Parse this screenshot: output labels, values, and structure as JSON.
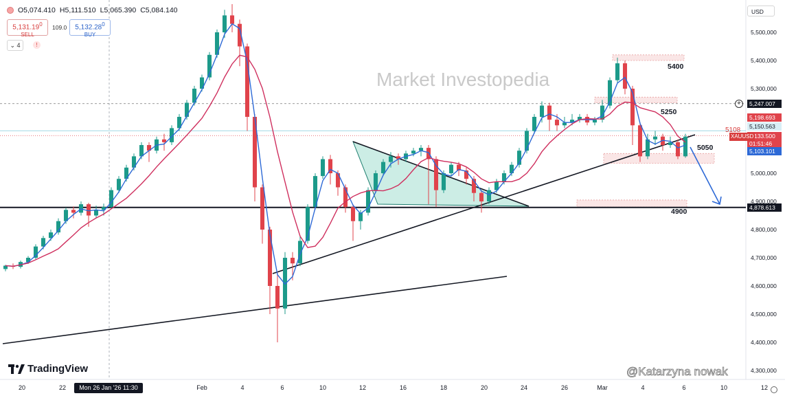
{
  "header": {
    "ohlc": [
      {
        "label": "O",
        "value": "5,074.410"
      },
      {
        "label": "H",
        "value": "5,111.510"
      },
      {
        "label": "L",
        "value": "5,065.390"
      },
      {
        "label": "C",
        "value": "5,084.140"
      }
    ],
    "sell_price": "5,131.19",
    "sell_sup": "0",
    "sell_label": "SELL",
    "spread": "109.0",
    "buy_price": "5,132.28",
    "buy_sup": "0",
    "buy_label": "BUY",
    "indicators_count": "4",
    "warning": "!",
    "currency": "USD"
  },
  "watermark": "Market Investopedia",
  "branding": {
    "logo_text": "TradingView",
    "credit": "@Katarzyna nowak"
  },
  "cursor_date": "Mon 26 Jan '26  11:30",
  "chart_data": {
    "type": "candlestick",
    "symbol": "XAUUSD",
    "ylim": [
      4330,
      5620
    ],
    "y_ticks": [
      4400,
      4500,
      4600,
      4700,
      4800,
      4900,
      5000,
      5100,
      5200,
      5300,
      5400,
      5500
    ],
    "y_tick_labels": [
      "4,400,000",
      "4,500,000",
      "4,600,000",
      "4,700,000",
      "4,800,000",
      "4,900,000",
      "5,000,000",
      "5,100,000",
      "5,200,000",
      "5,300,000",
      "5,400,000",
      "5,500,000"
    ],
    "y_top_label": "4,300,000",
    "x_ticks": [
      "20",
      "22",
      "Feb",
      "4",
      "6",
      "10",
      "12",
      "16",
      "18",
      "20",
      "24",
      "26",
      "Mar",
      "4",
      "6",
      "10",
      "12"
    ],
    "price_labels": [
      {
        "value": 5247.007,
        "text": "5,247.007",
        "style": "dark"
      },
      {
        "value": 5198.693,
        "text": "5,198.693",
        "style": "red"
      },
      {
        "value": 5150.563,
        "text": "5,150.563",
        "style": "light"
      },
      {
        "value": 5133.5,
        "text": "5,133.500",
        "style": "red"
      },
      {
        "value": 5125,
        "text": "01:51:46",
        "style": "red"
      },
      {
        "value": 5103.101,
        "text": "5,103.101",
        "style": "blue"
      },
      {
        "value": 4878.613,
        "text": "4,878.613",
        "style": "dark"
      }
    ],
    "level_labels": [
      {
        "value": 5400,
        "text": "5400"
      },
      {
        "value": 5250,
        "text": "5250"
      },
      {
        "value": 5050,
        "text": "5050"
      },
      {
        "value": 4900,
        "text": "4900"
      }
    ],
    "level_5108": "5108",
    "colors": {
      "up": "#1c9a8a",
      "down": "#e0434b",
      "ma_fast": "#2d69d6",
      "ma_slow": "#cf2f5e",
      "triangle": "#8fd6c6",
      "zone": "#f4c7c7"
    },
    "candles": [
      [
        4660,
        4672,
        4652,
        4675
      ],
      [
        4672,
        4668,
        4660,
        4680
      ],
      [
        4668,
        4685,
        4662,
        4690
      ],
      [
        4685,
        4700,
        4678,
        4706
      ],
      [
        4700,
        4740,
        4695,
        4748
      ],
      [
        4740,
        4770,
        4730,
        4778
      ],
      [
        4770,
        4790,
        4760,
        4800
      ],
      [
        4790,
        4830,
        4782,
        4840
      ],
      [
        4830,
        4870,
        4820,
        4878
      ],
      [
        4870,
        4860,
        4840,
        4882
      ],
      [
        4860,
        4890,
        4850,
        4900
      ],
      [
        4890,
        4850,
        4810,
        4895
      ],
      [
        4850,
        4870,
        4840,
        4885
      ],
      [
        4870,
        4880,
        4850,
        4892
      ],
      [
        4880,
        4940,
        4875,
        4950
      ],
      [
        4940,
        4980,
        4930,
        4990
      ],
      [
        4980,
        5020,
        4970,
        5030
      ],
      [
        5020,
        5060,
        5010,
        5070
      ],
      [
        5060,
        5100,
        5050,
        5110
      ],
      [
        5100,
        5080,
        5040,
        5110
      ],
      [
        5080,
        5120,
        5070,
        5130
      ],
      [
        5120,
        5110,
        5080,
        5140
      ],
      [
        5110,
        5160,
        5100,
        5170
      ],
      [
        5160,
        5200,
        5150,
        5210
      ],
      [
        5200,
        5250,
        5190,
        5260
      ],
      [
        5250,
        5300,
        5240,
        5310
      ],
      [
        5300,
        5340,
        5290,
        5350
      ],
      [
        5340,
        5420,
        5330,
        5430
      ],
      [
        5420,
        5500,
        5410,
        5510
      ],
      [
        5500,
        5560,
        5480,
        5580
      ],
      [
        5560,
        5530,
        5500,
        5600
      ],
      [
        5530,
        5450,
        5380,
        5545
      ],
      [
        5450,
        5200,
        5150,
        5460
      ],
      [
        5200,
        4950,
        4900,
        5210
      ],
      [
        4950,
        4800,
        4750,
        4960
      ],
      [
        4800,
        4600,
        4500,
        4810
      ],
      [
        4600,
        4520,
        4400,
        4650
      ],
      [
        4520,
        4700,
        4500,
        4720
      ],
      [
        4700,
        4680,
        4620,
        4720
      ],
      [
        4680,
        4760,
        4670,
        4780
      ],
      [
        4760,
        4880,
        4750,
        4890
      ],
      [
        4880,
        4990,
        4870,
        5000
      ],
      [
        4990,
        5050,
        4980,
        5060
      ],
      [
        5050,
        5000,
        4960,
        5065
      ],
      [
        5000,
        4950,
        4920,
        5010
      ],
      [
        4950,
        4880,
        4860,
        4960
      ],
      [
        4880,
        4830,
        4760,
        4890
      ],
      [
        4830,
        4860,
        4800,
        4870
      ],
      [
        4860,
        4940,
        4850,
        4950
      ],
      [
        4940,
        5000,
        4930,
        5010
      ],
      [
        5000,
        5040,
        4990,
        5050
      ],
      [
        5040,
        5060,
        5020,
        5075
      ],
      [
        5060,
        5050,
        5030,
        5070
      ],
      [
        5050,
        5070,
        5040,
        5080
      ],
      [
        5070,
        5080,
        5060,
        5090
      ],
      [
        5080,
        5090,
        5060,
        5100
      ],
      [
        5090,
        5050,
        4890,
        5100
      ],
      [
        5050,
        4940,
        4880,
        5060
      ],
      [
        4940,
        5000,
        4930,
        5010
      ],
      [
        5000,
        5030,
        4990,
        5040
      ],
      [
        5030,
        5010,
        4990,
        5040
      ],
      [
        5010,
        4980,
        4960,
        5020
      ],
      [
        4980,
        4930,
        4900,
        4990
      ],
      [
        4930,
        4900,
        4860,
        4940
      ],
      [
        4900,
        4940,
        4890,
        4950
      ],
      [
        4940,
        4970,
        4930,
        4980
      ],
      [
        4970,
        5000,
        4960,
        5010
      ],
      [
        5000,
        5030,
        4990,
        5040
      ],
      [
        5030,
        5080,
        5020,
        5090
      ],
      [
        5080,
        5150,
        5070,
        5160
      ],
      [
        5150,
        5200,
        5140,
        5210
      ],
      [
        5200,
        5240,
        5180,
        5255
      ],
      [
        5240,
        5190,
        5150,
        5250
      ],
      [
        5190,
        5170,
        5150,
        5210
      ],
      [
        5170,
        5180,
        5160,
        5200
      ],
      [
        5180,
        5190,
        5170,
        5210
      ],
      [
        5190,
        5200,
        5180,
        5210
      ],
      [
        5200,
        5180,
        5170,
        5210
      ],
      [
        5180,
        5190,
        5170,
        5200
      ],
      [
        5190,
        5240,
        5180,
        5260
      ],
      [
        5240,
        5330,
        5230,
        5340
      ],
      [
        5330,
        5390,
        5320,
        5410
      ],
      [
        5390,
        5300,
        5280,
        5400
      ],
      [
        5300,
        5170,
        5100,
        5310
      ],
      [
        5170,
        5060,
        5040,
        5180
      ],
      [
        5060,
        5120,
        5050,
        5140
      ],
      [
        5120,
        5130,
        5100,
        5150
      ],
      [
        5130,
        5100,
        5080,
        5140
      ],
      [
        5100,
        5110,
        5090,
        5130
      ],
      [
        5110,
        5060,
        5050,
        5120
      ],
      [
        5060,
        5130,
        5055,
        5140
      ]
    ]
  }
}
